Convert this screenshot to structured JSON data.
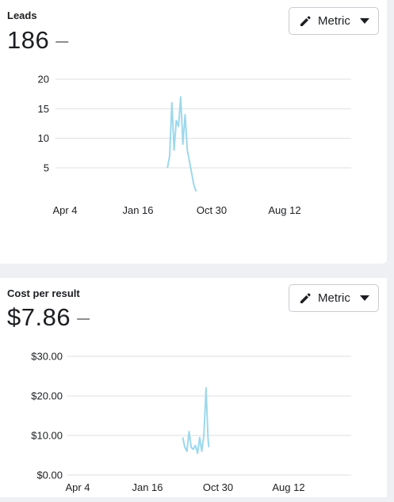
{
  "leads": {
    "title": "Leads",
    "value": "186",
    "delta": "—",
    "metric_button": {
      "label": "Metric",
      "icon": "pencil-icon",
      "dropdown_icon": "caret-down-icon"
    }
  },
  "cost": {
    "title": "Cost per result",
    "value": "$7.86",
    "delta": "—",
    "metric_button": {
      "label": "Metric",
      "icon": "pencil-icon",
      "dropdown_icon": "caret-down-icon"
    }
  },
  "colors": {
    "series": "#9dd8ec",
    "grid": "#dcdfe3",
    "text": "#1c1e21",
    "border": "#c8cbd0"
  },
  "chart_data": [
    {
      "type": "line",
      "title": "Leads",
      "x_tick_labels": [
        "Apr 4",
        "Jan 16",
        "Oct 30",
        "Aug 12"
      ],
      "x_tick_pos": [
        0,
        1,
        2,
        3
      ],
      "y_ticks": [
        5,
        10,
        15,
        20
      ],
      "y_tick_labels": [
        "5",
        "10",
        "15",
        "20"
      ],
      "ylim": [
        1,
        20
      ],
      "grid": true,
      "legend": "none",
      "series": [
        {
          "x": [
            1.4,
            1.43,
            1.46,
            1.49,
            1.52,
            1.55,
            1.58,
            1.61,
            1.64,
            1.67,
            1.7,
            1.73,
            1.76,
            1.79
          ],
          "values": [
            5,
            7,
            16,
            8,
            13,
            12,
            17,
            9,
            14,
            8,
            6,
            4,
            2,
            1
          ]
        }
      ]
    },
    {
      "type": "line",
      "title": "Cost per result",
      "x_tick_labels": [
        "Apr 4",
        "Jan 16",
        "Oct 30",
        "Aug 12"
      ],
      "x_tick_pos": [
        0,
        1,
        2,
        3
      ],
      "y_ticks": [
        0,
        10,
        20,
        30
      ],
      "y_tick_labels": [
        "$0.00",
        "$10.00",
        "$20.00",
        "$30.00"
      ],
      "ylim": [
        0,
        30
      ],
      "grid": true,
      "legend": "none",
      "series": [
        {
          "x": [
            1.5,
            1.53,
            1.56,
            1.59,
            1.62,
            1.65,
            1.68,
            1.71,
            1.74,
            1.77,
            1.8,
            1.83,
            1.86,
            1.87
          ],
          "values": [
            9.5,
            7,
            6,
            11,
            7,
            6.5,
            7.5,
            5.5,
            9.5,
            6,
            10,
            22,
            9,
            7
          ]
        }
      ]
    }
  ]
}
